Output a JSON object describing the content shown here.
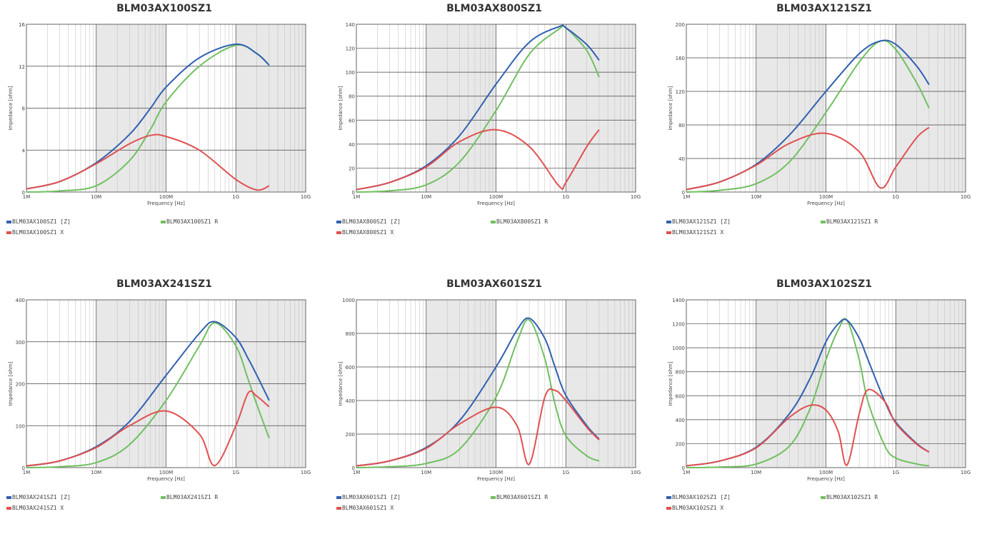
{
  "page": {
    "xlabel": "Frequency [Hz]",
    "ylabel": "Impedance [ohm]",
    "x_ticks": [
      "1M",
      "10M",
      "100M",
      "1G",
      "10G"
    ],
    "colors": {
      "Z": "#3060b0",
      "R": "#70c060",
      "X": "#e05050",
      "grid": "#444444",
      "minor": "#bbbbbb",
      "shade": "#e8e8e8"
    }
  },
  "chart_data": [
    {
      "type": "line",
      "title": "BLM03AX100SZ1",
      "xlabel": "Frequency [Hz]",
      "ylabel": "Impedance [ohm]",
      "xscale": "log",
      "xlim": [
        1000000,
        10000000000
      ],
      "ylim": [
        0,
        16
      ],
      "y_ticks": [
        "0",
        "4",
        "8",
        "12",
        "16"
      ],
      "x": [
        1000000,
        3000000,
        10000000,
        30000000,
        60000000,
        100000000,
        300000000,
        1000000000,
        2000000000,
        3000000000
      ],
      "series": [
        {
          "name": "BLM03AX100SZ1 [Z]",
          "key": "Z",
          "values": [
            0.3,
            1.0,
            2.8,
            5.5,
            8.0,
            10.0,
            12.8,
            14.1,
            13.2,
            12.1
          ]
        },
        {
          "name": "BLM03AX100SZ1 R",
          "key": "R",
          "values": [
            0.0,
            0.1,
            0.6,
            3.0,
            6.0,
            8.6,
            12.0,
            14.0,
            13.2,
            12.1
          ]
        },
        {
          "name": "BLM03AX100SZ1 X",
          "key": "X",
          "values": [
            0.3,
            1.0,
            2.7,
            4.6,
            5.4,
            5.3,
            4.0,
            1.2,
            0.2,
            0.6
          ]
        }
      ],
      "legend": [
        "BLM03AX100SZ1 [Z]",
        "BLM03AX100SZ1 R",
        "BLM03AX100SZ1 X"
      ]
    },
    {
      "type": "line",
      "title": "BLM03AX800SZ1",
      "xlabel": "Frequency [Hz]",
      "ylabel": "Impedance [ohm]",
      "xscale": "log",
      "xlim": [
        1000000,
        10000000000
      ],
      "ylim": [
        0,
        140
      ],
      "y_ticks": [
        "0",
        "20",
        "40",
        "60",
        "80",
        "100",
        "120",
        "140"
      ],
      "x": [
        1000000,
        3000000,
        10000000,
        30000000,
        100000000,
        300000000,
        800000000,
        1000000000,
        2000000000,
        3000000000
      ],
      "series": [
        {
          "name": "BLM03AX800SZ1 [Z]",
          "key": "Z",
          "values": [
            2,
            8,
            22,
            47,
            90,
            125,
            138,
            137,
            123,
            110
          ]
        },
        {
          "name": "BLM03AX800SZ1 R",
          "key": "R",
          "values": [
            0,
            1,
            6,
            25,
            68,
            115,
            136,
            137,
            118,
            96
          ]
        },
        {
          "name": "BLM03AX800SZ1 X",
          "key": "X",
          "values": [
            2,
            8,
            21,
            42,
            52,
            38,
            5,
            8,
            38,
            52
          ]
        }
      ],
      "legend": [
        "BLM03AX800SZ1 [Z]",
        "BLM03AX800SZ1 R",
        "BLM03AX800SZ1 X"
      ]
    },
    {
      "type": "line",
      "title": "BLM03AX121SZ1",
      "xlabel": "Frequency [Hz]",
      "ylabel": "Impedance [ohm]",
      "xscale": "log",
      "xlim": [
        1000000,
        10000000000
      ],
      "ylim": [
        0,
        200
      ],
      "y_ticks": [
        "0",
        "40",
        "80",
        "120",
        "160",
        "200"
      ],
      "x": [
        1000000,
        3000000,
        10000000,
        30000000,
        100000000,
        300000000,
        600000000,
        1000000000,
        2000000000,
        3000000000
      ],
      "series": [
        {
          "name": "BLM03AX121SZ1 [Z]",
          "key": "Z",
          "values": [
            3,
            12,
            33,
            68,
            120,
            165,
            180,
            176,
            150,
            128
          ]
        },
        {
          "name": "BLM03AX121SZ1 R",
          "key": "R",
          "values": [
            0,
            2,
            10,
            36,
            95,
            155,
            180,
            170,
            130,
            100
          ]
        },
        {
          "name": "BLM03AX121SZ1 X",
          "key": "X",
          "values": [
            3,
            12,
            32,
            58,
            70,
            48,
            5,
            30,
            65,
            77
          ]
        }
      ],
      "legend": [
        "BLM03AX121SZ1 [Z]",
        "BLM03AX121SZ1 R",
        "BLM03AX121SZ1 X"
      ]
    },
    {
      "type": "line",
      "title": "BLM03AX241SZ1",
      "xlabel": "Frequency [Hz]",
      "ylabel": "Impedance [ohm]",
      "xscale": "log",
      "xlim": [
        1000000,
        10000000000
      ],
      "ylim": [
        0,
        400
      ],
      "y_ticks": [
        "0",
        "100",
        "200",
        "300",
        "400"
      ],
      "x": [
        1000000,
        3000000,
        10000000,
        30000000,
        100000000,
        300000000,
        500000000,
        1000000000,
        1500000000,
        2000000000,
        3000000000
      ],
      "series": [
        {
          "name": "BLM03AX241SZ1 [Z]",
          "key": "Z",
          "values": [
            4,
            16,
            50,
            110,
            220,
            320,
            348,
            310,
            260,
            220,
            160
          ]
        },
        {
          "name": "BLM03AX241SZ1 R",
          "key": "R",
          "values": [
            0,
            2,
            12,
            55,
            160,
            290,
            345,
            290,
            210,
            150,
            70
          ]
        },
        {
          "name": "BLM03AX241SZ1 X",
          "key": "X",
          "values": [
            4,
            16,
            48,
            100,
            135,
            80,
            5,
            100,
            178,
            170,
            145
          ]
        }
      ],
      "legend": [
        "BLM03AX241SZ1 [Z]",
        "BLM03AX241SZ1 R",
        "BLM03AX241SZ1 X"
      ]
    },
    {
      "type": "line",
      "title": "BLM03AX601SZ1",
      "xlabel": "Frequency [Hz]",
      "ylabel": "Impedance [ohm]",
      "xscale": "log",
      "xlim": [
        1000000,
        10000000000
      ],
      "ylim": [
        0,
        1000
      ],
      "y_ticks": [
        "0",
        "200",
        "400",
        "600",
        "800",
        "1000"
      ],
      "x": [
        1000000,
        3000000,
        10000000,
        30000000,
        100000000,
        200000000,
        300000000,
        500000000,
        700000000,
        1000000000,
        2000000000,
        3000000000
      ],
      "series": [
        {
          "name": "BLM03AX601SZ1 [Z]",
          "key": "Z",
          "values": [
            10,
            40,
            120,
            280,
            600,
            820,
            890,
            770,
            600,
            430,
            250,
            170
          ]
        },
        {
          "name": "BLM03AX601SZ1 R",
          "key": "R",
          "values": [
            0,
            5,
            25,
            110,
            420,
            750,
            880,
            650,
            380,
            190,
            70,
            40
          ]
        },
        {
          "name": "BLM03AX601SZ1 X",
          "key": "X",
          "values": [
            10,
            40,
            115,
            260,
            360,
            250,
            20,
            420,
            460,
            400,
            240,
            165
          ]
        }
      ],
      "legend": [
        "BLM03AX601SZ1 [Z]",
        "BLM03AX601SZ1 R",
        "BLM03AX601SZ1 X"
      ]
    },
    {
      "type": "line",
      "title": "BLM03AX102SZ1",
      "xlabel": "Frequency [Hz]",
      "ylabel": "Impedance [ohm]",
      "xscale": "log",
      "xlim": [
        1000000,
        10000000000
      ],
      "ylim": [
        0,
        1400
      ],
      "y_ticks": [
        "0",
        "200",
        "400",
        "600",
        "800",
        "1000",
        "1200",
        "1400"
      ],
      "x": [
        1000000,
        3000000,
        10000000,
        30000000,
        60000000,
        100000000,
        150000000,
        200000000,
        300000000,
        400000000,
        700000000,
        1000000000,
        2000000000,
        3000000000
      ],
      "series": [
        {
          "name": "BLM03AX102SZ1 [Z]",
          "key": "Z",
          "values": [
            15,
            55,
            170,
            450,
            750,
            1050,
            1200,
            1230,
            1080,
            900,
            550,
            380,
            200,
            130
          ]
        },
        {
          "name": "BLM03AX102SZ1 R",
          "key": "R",
          "values": [
            0,
            5,
            30,
            180,
            500,
            900,
            1150,
            1230,
            900,
            550,
            180,
            80,
            30,
            15
          ]
        },
        {
          "name": "BLM03AX102SZ1 X",
          "key": "X",
          "values": [
            15,
            55,
            165,
            420,
            520,
            480,
            300,
            20,
            450,
            650,
            550,
            370,
            195,
            130
          ]
        }
      ],
      "legend": [
        "BLM03AX102SZ1 [Z]",
        "BLM03AX102SZ1 R",
        "BLM03AX102SZ1 X"
      ]
    }
  ]
}
